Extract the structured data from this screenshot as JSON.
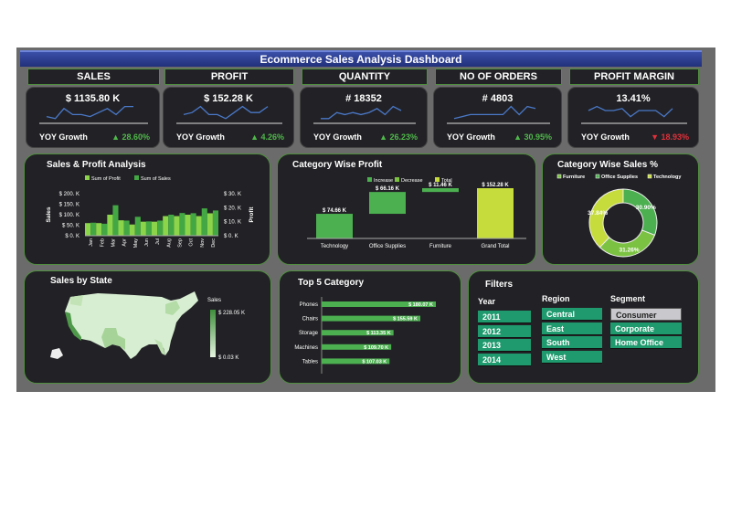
{
  "title": "Ecommerce Sales Analysis Dashboard",
  "kpis": [
    {
      "label": "SALES",
      "value": "$ 1135.80 K",
      "yoy_label": "YOY Growth",
      "growth": "▲ 28.60%",
      "direction": "up",
      "trend": [
        2,
        1,
        6,
        3,
        3,
        2,
        4,
        6,
        3,
        7,
        7
      ]
    },
    {
      "label": "PROFIT",
      "value": "$ 152.28 K",
      "yoy_label": "YOY Growth",
      "growth": "▲ 4.26%",
      "direction": "up",
      "trend": [
        3,
        4,
        7,
        3,
        3,
        1,
        4,
        7,
        4,
        4,
        7
      ]
    },
    {
      "label": "QUANTITY",
      "value": "# 18352",
      "yoy_label": "YOY Growth",
      "growth": "▲ 26.23%",
      "direction": "up",
      "trend": [
        1,
        1,
        4,
        3,
        4,
        3,
        4,
        6,
        3,
        7,
        5
      ]
    },
    {
      "label": "NO OF ORDERS",
      "value": "# 4803",
      "yoy_label": "YOY Growth",
      "growth": "▲ 30.95%",
      "direction": "up",
      "trend": [
        1,
        2,
        3,
        3,
        3,
        3,
        3,
        7,
        3,
        7,
        6
      ]
    },
    {
      "label": "PROFIT MARGIN",
      "value": "13.41%",
      "yoy_label": "YOY Growth",
      "growth": "▼ 18.93%",
      "direction": "down",
      "trend": [
        5,
        7,
        5,
        5,
        6,
        2,
        5,
        5,
        5,
        2,
        6
      ]
    }
  ],
  "colors": {
    "sales": "#43a844",
    "profit": "#8cd44a",
    "increase": "#4caf50",
    "decrease": "#7cc242",
    "total": "#c6dc3c",
    "up": "#4fb84a",
    "down": "#e0303a",
    "filter": "#1f9a6e"
  },
  "sales_profit": {
    "title": "Sales & Profit Analysis",
    "legend": [
      "Sum of Profit",
      "Sum of Sales"
    ],
    "ylabel_left": "Sales",
    "ylabel_right": "Profit",
    "left_ticks": [
      "$ 200. K",
      "$ 150. K",
      "$ 100. K",
      "$ 50. K",
      "$ 0. K"
    ],
    "right_ticks": [
      "$ 30. K",
      "$ 20. K",
      "$ 10. K",
      "$ 0. K"
    ],
    "chart_data": {
      "type": "bar",
      "categories": [
        "Jan",
        "Feb",
        "Mar",
        "Apr",
        "May",
        "Jun",
        "Jul",
        "Aug",
        "Sep",
        "Oct",
        "Nov",
        "Dec"
      ],
      "series": [
        {
          "name": "Sum of Sales",
          "axis": "left",
          "values": [
            62,
            57,
            145,
            72,
            90,
            68,
            72,
            100,
            108,
            107,
            130,
            120
          ]
        },
        {
          "name": "Sum of Profit",
          "axis": "right",
          "values": [
            9,
            9,
            15,
            11,
            8,
            10,
            10,
            14,
            14,
            15,
            14,
            16
          ]
        }
      ],
      "ylim_left": [
        0,
        200
      ],
      "ylim_right": [
        0,
        30
      ]
    }
  },
  "category_profit": {
    "title": "Category Wise Profit",
    "legend": [
      "Increase",
      "Decrease",
      "Total"
    ],
    "chart_data": {
      "type": "waterfall",
      "categories": [
        "Technology",
        "Office Supplies",
        "Furniture",
        "Grand Total"
      ],
      "values": [
        74.66,
        66.16,
        11.46,
        152.28
      ],
      "labels": [
        "$ 74.66 K",
        "$ 66.16 K",
        "$ 11.46 K",
        "$ 152.28 K"
      ],
      "kinds": [
        "increase",
        "increase",
        "increase",
        "total"
      ]
    }
  },
  "category_sales": {
    "title": "Category Wise Sales %",
    "legend": [
      "Furniture",
      "Office Supplies",
      "Technology"
    ],
    "chart_data": {
      "type": "pie",
      "donut": true,
      "labels": [
        "Office Supplies",
        "Furniture",
        "Technology"
      ],
      "values": [
        30.9,
        31.26,
        37.84
      ],
      "value_labels": [
        "30.90%",
        "31.26%",
        "37.84%"
      ],
      "colors": [
        "#4caf50",
        "#7cc242",
        "#c6dc3c"
      ]
    }
  },
  "state": {
    "title": "Sales by State",
    "legend_title": "Sales",
    "max": "$ 228.05 K",
    "min": "$ 0.03 K"
  },
  "top5": {
    "title": "Top 5 Category",
    "chart_data": {
      "type": "bar",
      "orientation": "horizontal",
      "categories": [
        "Phones",
        "Chairs",
        "Storage",
        "Machines",
        "Tables"
      ],
      "values": [
        180.07,
        155.59,
        113.35,
        109.7,
        107.03
      ],
      "labels": [
        "$ 180.07 K",
        "$ 155.59 K",
        "$ 113.35 K",
        "$ 109.70 K",
        "$ 107.03 K"
      ]
    }
  },
  "filters": {
    "title": "Filters",
    "year": {
      "label": "Year",
      "items": [
        "2011",
        "2012",
        "2013",
        "2014"
      ]
    },
    "region": {
      "label": "Region",
      "items": [
        "Central",
        "East",
        "South",
        "West"
      ]
    },
    "segment": {
      "label": "Segment",
      "items": [
        "Consumer",
        "Corporate",
        "Home Office"
      ],
      "selected": "Consumer"
    }
  }
}
